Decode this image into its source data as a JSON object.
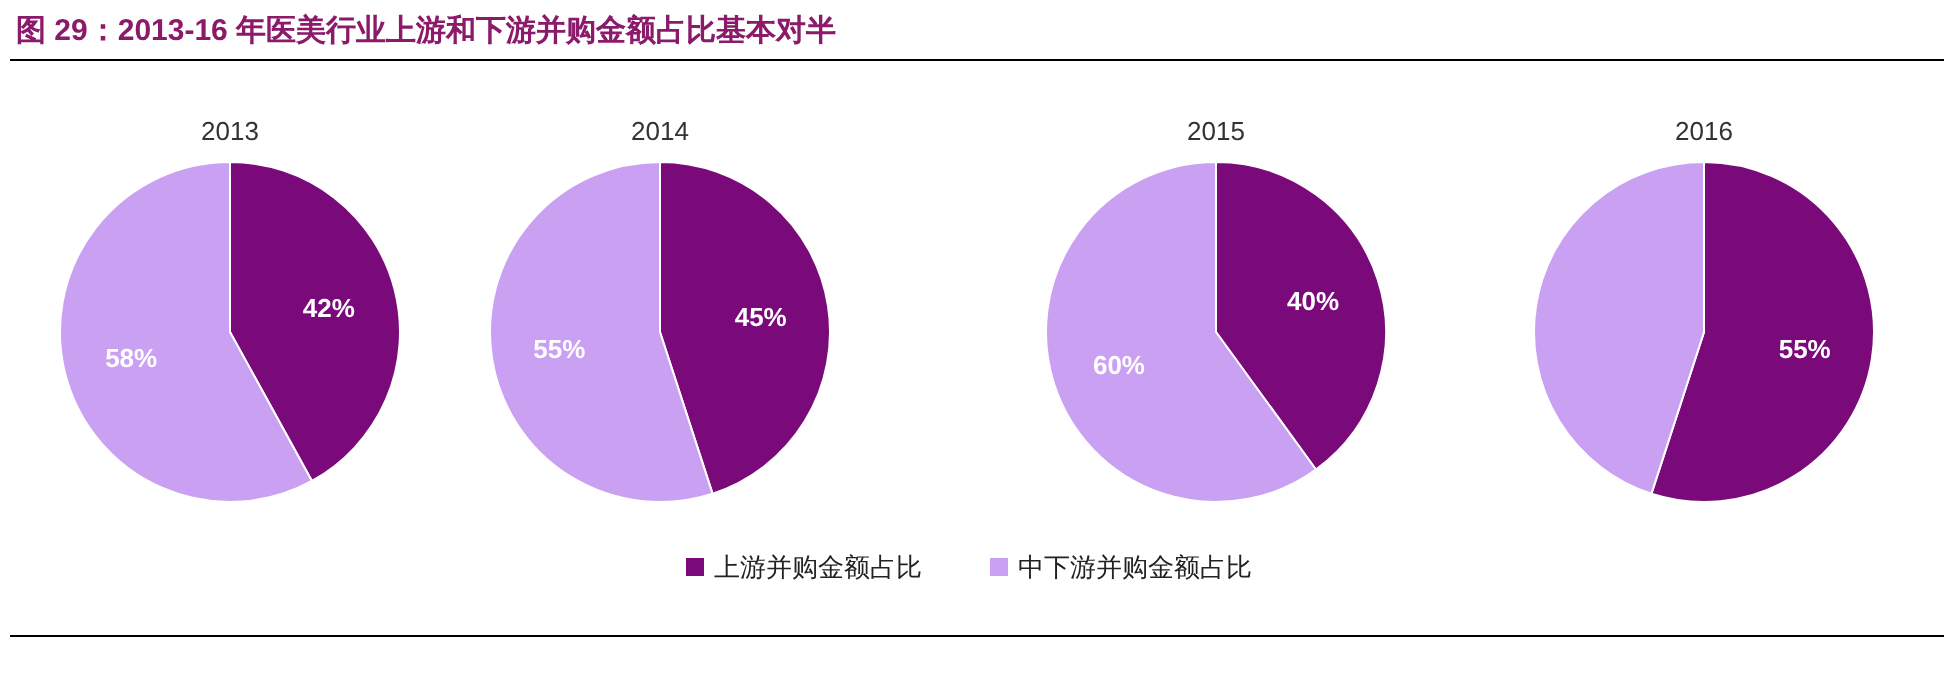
{
  "chart_data": [
    {
      "type": "pie",
      "title": "2013",
      "annotations": [
        "图 29：2013-16 年医美行业上游和下游并购金额占比基本对半"
      ],
      "categories": [
        "上游并购金额占比",
        "中下游并购金额占比"
      ],
      "values": [
        42,
        58
      ],
      "colors": [
        "#7a0a7a",
        "#c9a0f2"
      ],
      "value_labels": [
        "42%",
        "58%"
      ],
      "legend": "bottom"
    },
    {
      "type": "pie",
      "title": "2014",
      "categories": [
        null,
        null
      ],
      "values": [
        45,
        55
      ],
      "colors": [
        "#7a0a7a",
        "#c9a0f2"
      ],
      "value_labels": [
        "45%",
        "55%"
      ]
    },
    {
      "type": "pie",
      "title": "2015",
      "categories": [
        null,
        null
      ],
      "values": [
        40,
        60
      ],
      "colors": [
        "#7a0a7a",
        "#c9a0f2"
      ],
      "value_labels": [
        "40%",
        "60%"
      ]
    },
    {
      "type": "pie",
      "title": "2016",
      "categories": [
        null,
        null
      ],
      "values": [
        55,
        45
      ],
      "colors": [
        "#7a0a7a",
        "#c9a0f2"
      ],
      "value_labels": [
        "55%",
        null
      ]
    }
  ]
}
